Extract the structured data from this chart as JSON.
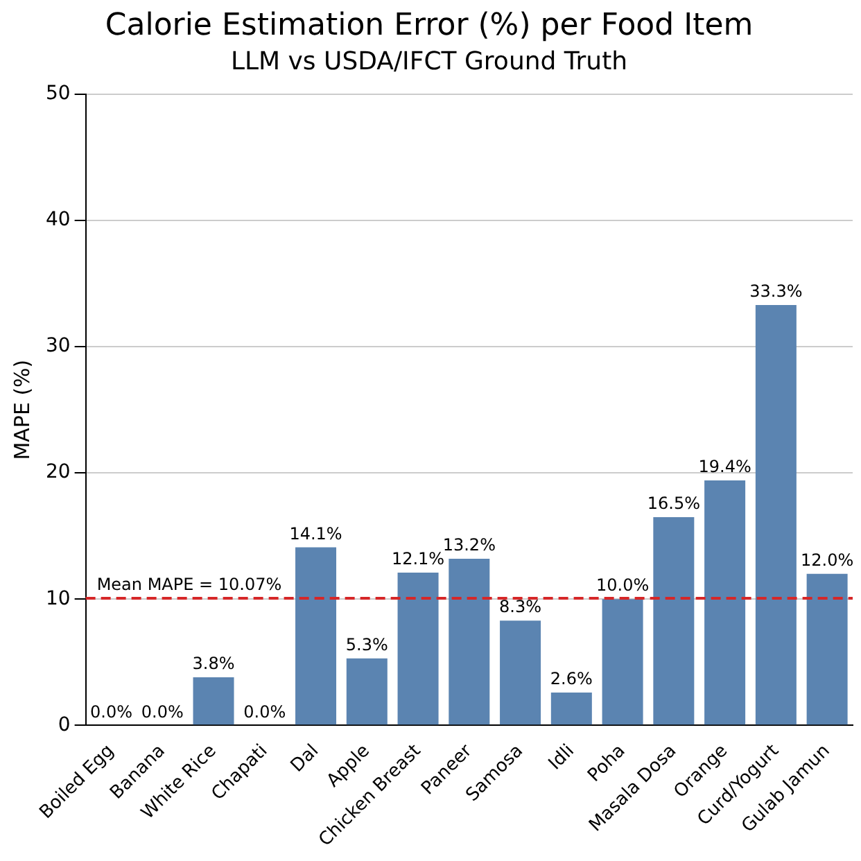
{
  "chart_data": {
    "type": "bar",
    "title": "Calorie Estimation Error (%) per Food Item",
    "subtitle": "LLM vs USDA/IFCT Ground Truth",
    "ylabel": "MAPE (%)",
    "categories": [
      "Boiled Egg",
      "Banana",
      "White Rice",
      "Chapati",
      "Dal",
      "Apple",
      "Chicken Breast",
      "Paneer",
      "Samosa",
      "Idli",
      "Poha",
      "Masala Dosa",
      "Orange",
      "Curd/Yogurt",
      "Gulab Jamun"
    ],
    "values": [
      0,
      0,
      3.8,
      0,
      14.1,
      5.3,
      12.1,
      13.2,
      8.3,
      2.6,
      10.0,
      16.5,
      19.4,
      33.3,
      12.0
    ],
    "value_labels": [
      "0.0%",
      "0.0%",
      "3.8%",
      "0.0%",
      "14.1%",
      "5.3%",
      "12.1%",
      "13.2%",
      "8.3%",
      "2.6%",
      "10.0%",
      "16.5%",
      "19.4%",
      "33.3%",
      "12.0%"
    ],
    "color": "#5b84b1",
    "ylim": [
      0,
      50
    ],
    "yticks": [
      0,
      10,
      20,
      30,
      40,
      50
    ],
    "grid": "y",
    "legend": false,
    "ref_lines": [
      {
        "axis": "y",
        "value": 10.07,
        "label": "Mean MAPE = 10.07%",
        "color": "#d62728",
        "line_style": "dashed"
      }
    ]
  }
}
